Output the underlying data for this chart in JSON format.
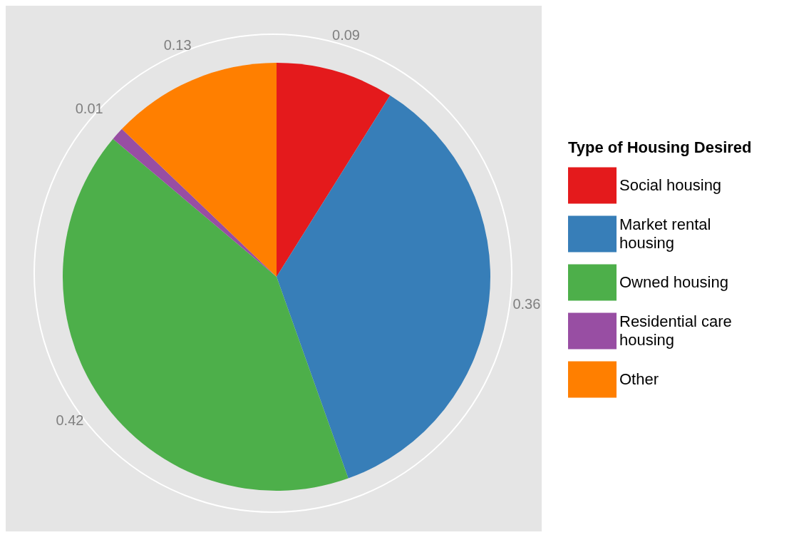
{
  "chart_data": {
    "type": "pie",
    "categories": [
      "Social housing",
      "Market rental housing",
      "Owned housing",
      "Residential care housing",
      "Other"
    ],
    "values": [
      0.09,
      0.36,
      0.42,
      0.01,
      0.13
    ],
    "colors": [
      "#e41a1c",
      "#377eb8",
      "#4daf4a",
      "#984ea3",
      "#ff7f00"
    ],
    "legend_title": "Type of Housing Desired",
    "legend": "right",
    "data_labels": true
  }
}
